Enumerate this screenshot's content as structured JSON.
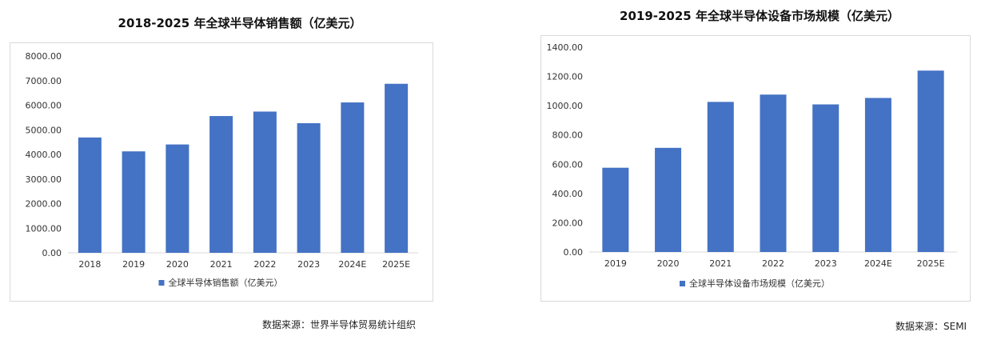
{
  "chart_data": [
    {
      "type": "bar",
      "title": "2018-2025 年全球半导体销售额（亿美元）",
      "categories": [
        "2018",
        "2019",
        "2020",
        "2021",
        "2022",
        "2023",
        "2024E",
        "2025E"
      ],
      "series": [
        {
          "name": "全球半导体销售额（亿美元）",
          "values": [
            4688,
            4123,
            4404,
            5559,
            5741,
            5268,
            6112,
            6870
          ]
        }
      ],
      "yticks": [
        "0.00",
        "1000.00",
        "2000.00",
        "3000.00",
        "4000.00",
        "5000.00",
        "6000.00",
        "7000.00",
        "8000.00"
      ],
      "ylim": [
        0,
        8000
      ],
      "xlabel": "",
      "ylabel": "",
      "legend": "bottom",
      "color": "#4472C4",
      "source": "数据来源：世界半导体贸易统计组织"
    },
    {
      "type": "bar",
      "title": "2019-2025 年全球半导体设备市场规模（亿美元）",
      "categories": [
        "2019",
        "2020",
        "2021",
        "2022",
        "2023",
        "2024E",
        "2025E"
      ],
      "series": [
        {
          "name": "全球半导体设备市场规模（亿美元）",
          "values": [
            576,
            712,
            1026,
            1076,
            1009,
            1053,
            1240
          ]
        }
      ],
      "yticks": [
        "0.00",
        "200.00",
        "400.00",
        "600.00",
        "800.00",
        "1000.00",
        "1200.00",
        "1400.00"
      ],
      "ylim": [
        0,
        1400
      ],
      "xlabel": "",
      "ylabel": "",
      "legend": "bottom",
      "color": "#4472C4",
      "source": "数据来源：SEMI"
    }
  ]
}
